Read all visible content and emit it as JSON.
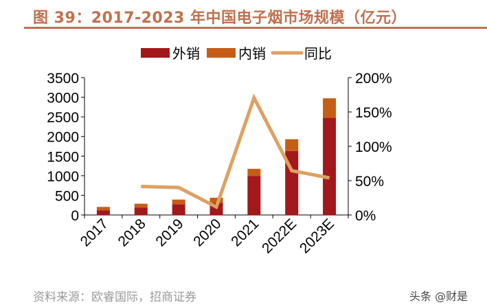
{
  "title": "图 39：2017-2023 年中国电子烟市场规模（亿元）",
  "source": "资料来源：欧睿国际，招商证券",
  "watermark": "头条 @财是",
  "chart_data": {
    "type": "bar",
    "stacked": true,
    "categories": [
      "2017",
      "2018",
      "2019",
      "2020",
      "2021",
      "2022E",
      "2023E"
    ],
    "series": [
      {
        "name": "外销",
        "type": "bar",
        "axis": "left",
        "color": "#a3181a",
        "values": [
          120,
          190,
          275,
          310,
          995,
          1630,
          2475
        ]
      },
      {
        "name": "内销",
        "type": "bar",
        "axis": "left",
        "color": "#c65d17",
        "values": [
          85,
          97,
          117,
          129,
          181,
          300,
          497
        ]
      },
      {
        "name": "同比",
        "type": "line",
        "axis": "right",
        "color": "#dfa060",
        "values": [
          null,
          41.5,
          40,
          11.7,
          170.6,
          64.5,
          54
        ]
      }
    ],
    "left_axis": {
      "ylim": [
        0,
        3500
      ],
      "ticks": [
        "0",
        "500",
        "1000",
        "1500",
        "2000",
        "2500",
        "3000",
        "3500"
      ]
    },
    "right_axis": {
      "ylim": [
        0,
        200
      ],
      "unit": "%",
      "ticks": [
        "0%",
        "50%",
        "100%",
        "150%",
        "200%"
      ]
    },
    "legend": {
      "placement": "top",
      "entries": [
        "外销",
        "内销",
        "同比"
      ]
    },
    "grid": false
  }
}
